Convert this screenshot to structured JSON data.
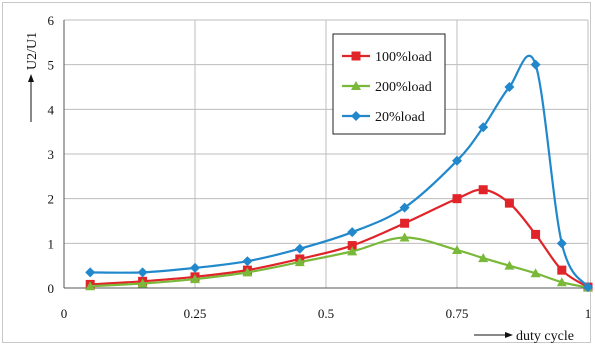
{
  "chart_data": {
    "type": "line",
    "title": "",
    "xlabel": "duty cycle",
    "ylabel": "U2/U1",
    "xlim": [
      0,
      1
    ],
    "ylim": [
      0,
      6
    ],
    "x_ticks": [
      "0",
      "0.25",
      "0.5",
      "0.75",
      "1"
    ],
    "x_tick_values": [
      0,
      0.25,
      0.5,
      0.75,
      1
    ],
    "y_ticks": [
      "0",
      "1",
      "2",
      "3",
      "4",
      "5",
      "6"
    ],
    "y_tick_values": [
      0,
      1,
      2,
      3,
      4,
      5,
      6
    ],
    "grid": true,
    "legend_position": "top-right",
    "series": [
      {
        "name": "100%load",
        "color": "#e0242a",
        "marker": "square",
        "points": [
          [
            0.05,
            0.08
          ],
          [
            0.15,
            0.15
          ],
          [
            0.25,
            0.25
          ],
          [
            0.35,
            0.4
          ],
          [
            0.45,
            0.65
          ],
          [
            0.55,
            0.95
          ],
          [
            0.65,
            1.45
          ],
          [
            0.75,
            2.0
          ],
          [
            0.8,
            2.2
          ],
          [
            0.85,
            1.9
          ],
          [
            0.9,
            1.2
          ],
          [
            0.95,
            0.4
          ],
          [
            1.0,
            0.02
          ]
        ]
      },
      {
        "name": "200%load",
        "color": "#7ab83a",
        "marker": "triangle",
        "points": [
          [
            0.05,
            0.04
          ],
          [
            0.15,
            0.1
          ],
          [
            0.25,
            0.2
          ],
          [
            0.35,
            0.35
          ],
          [
            0.45,
            0.58
          ],
          [
            0.55,
            0.82
          ],
          [
            0.65,
            1.13
          ],
          [
            0.75,
            0.85
          ],
          [
            0.8,
            0.67
          ],
          [
            0.85,
            0.5
          ],
          [
            0.9,
            0.33
          ],
          [
            0.95,
            0.13
          ],
          [
            1.0,
            0.01
          ]
        ]
      },
      {
        "name": "20%load",
        "color": "#2288cc",
        "marker": "diamond",
        "points": [
          [
            0.05,
            0.35
          ],
          [
            0.15,
            0.35
          ],
          [
            0.25,
            0.45
          ],
          [
            0.35,
            0.6
          ],
          [
            0.45,
            0.88
          ],
          [
            0.55,
            1.25
          ],
          [
            0.65,
            1.8
          ],
          [
            0.75,
            2.85
          ],
          [
            0.8,
            3.6
          ],
          [
            0.85,
            4.5
          ],
          [
            0.9,
            5.0
          ],
          [
            0.95,
            1.0
          ],
          [
            1.0,
            0.02
          ]
        ]
      }
    ]
  }
}
